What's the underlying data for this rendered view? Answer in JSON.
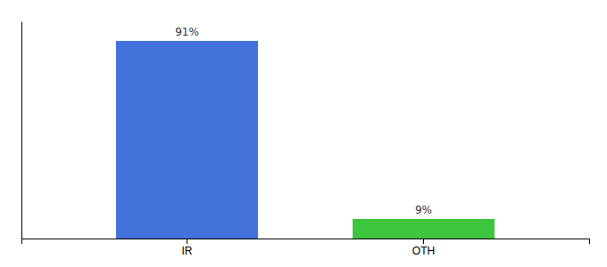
{
  "chart_data": {
    "type": "bar",
    "categories": [
      "IR",
      "OTH"
    ],
    "values": [
      91,
      9
    ],
    "value_labels": [
      "91%",
      "9%"
    ],
    "colors": [
      "#4472db",
      "#3dc63d"
    ],
    "ylim": [
      0,
      100
    ],
    "grid": false,
    "data_labels": true,
    "tick_labels": "x"
  }
}
